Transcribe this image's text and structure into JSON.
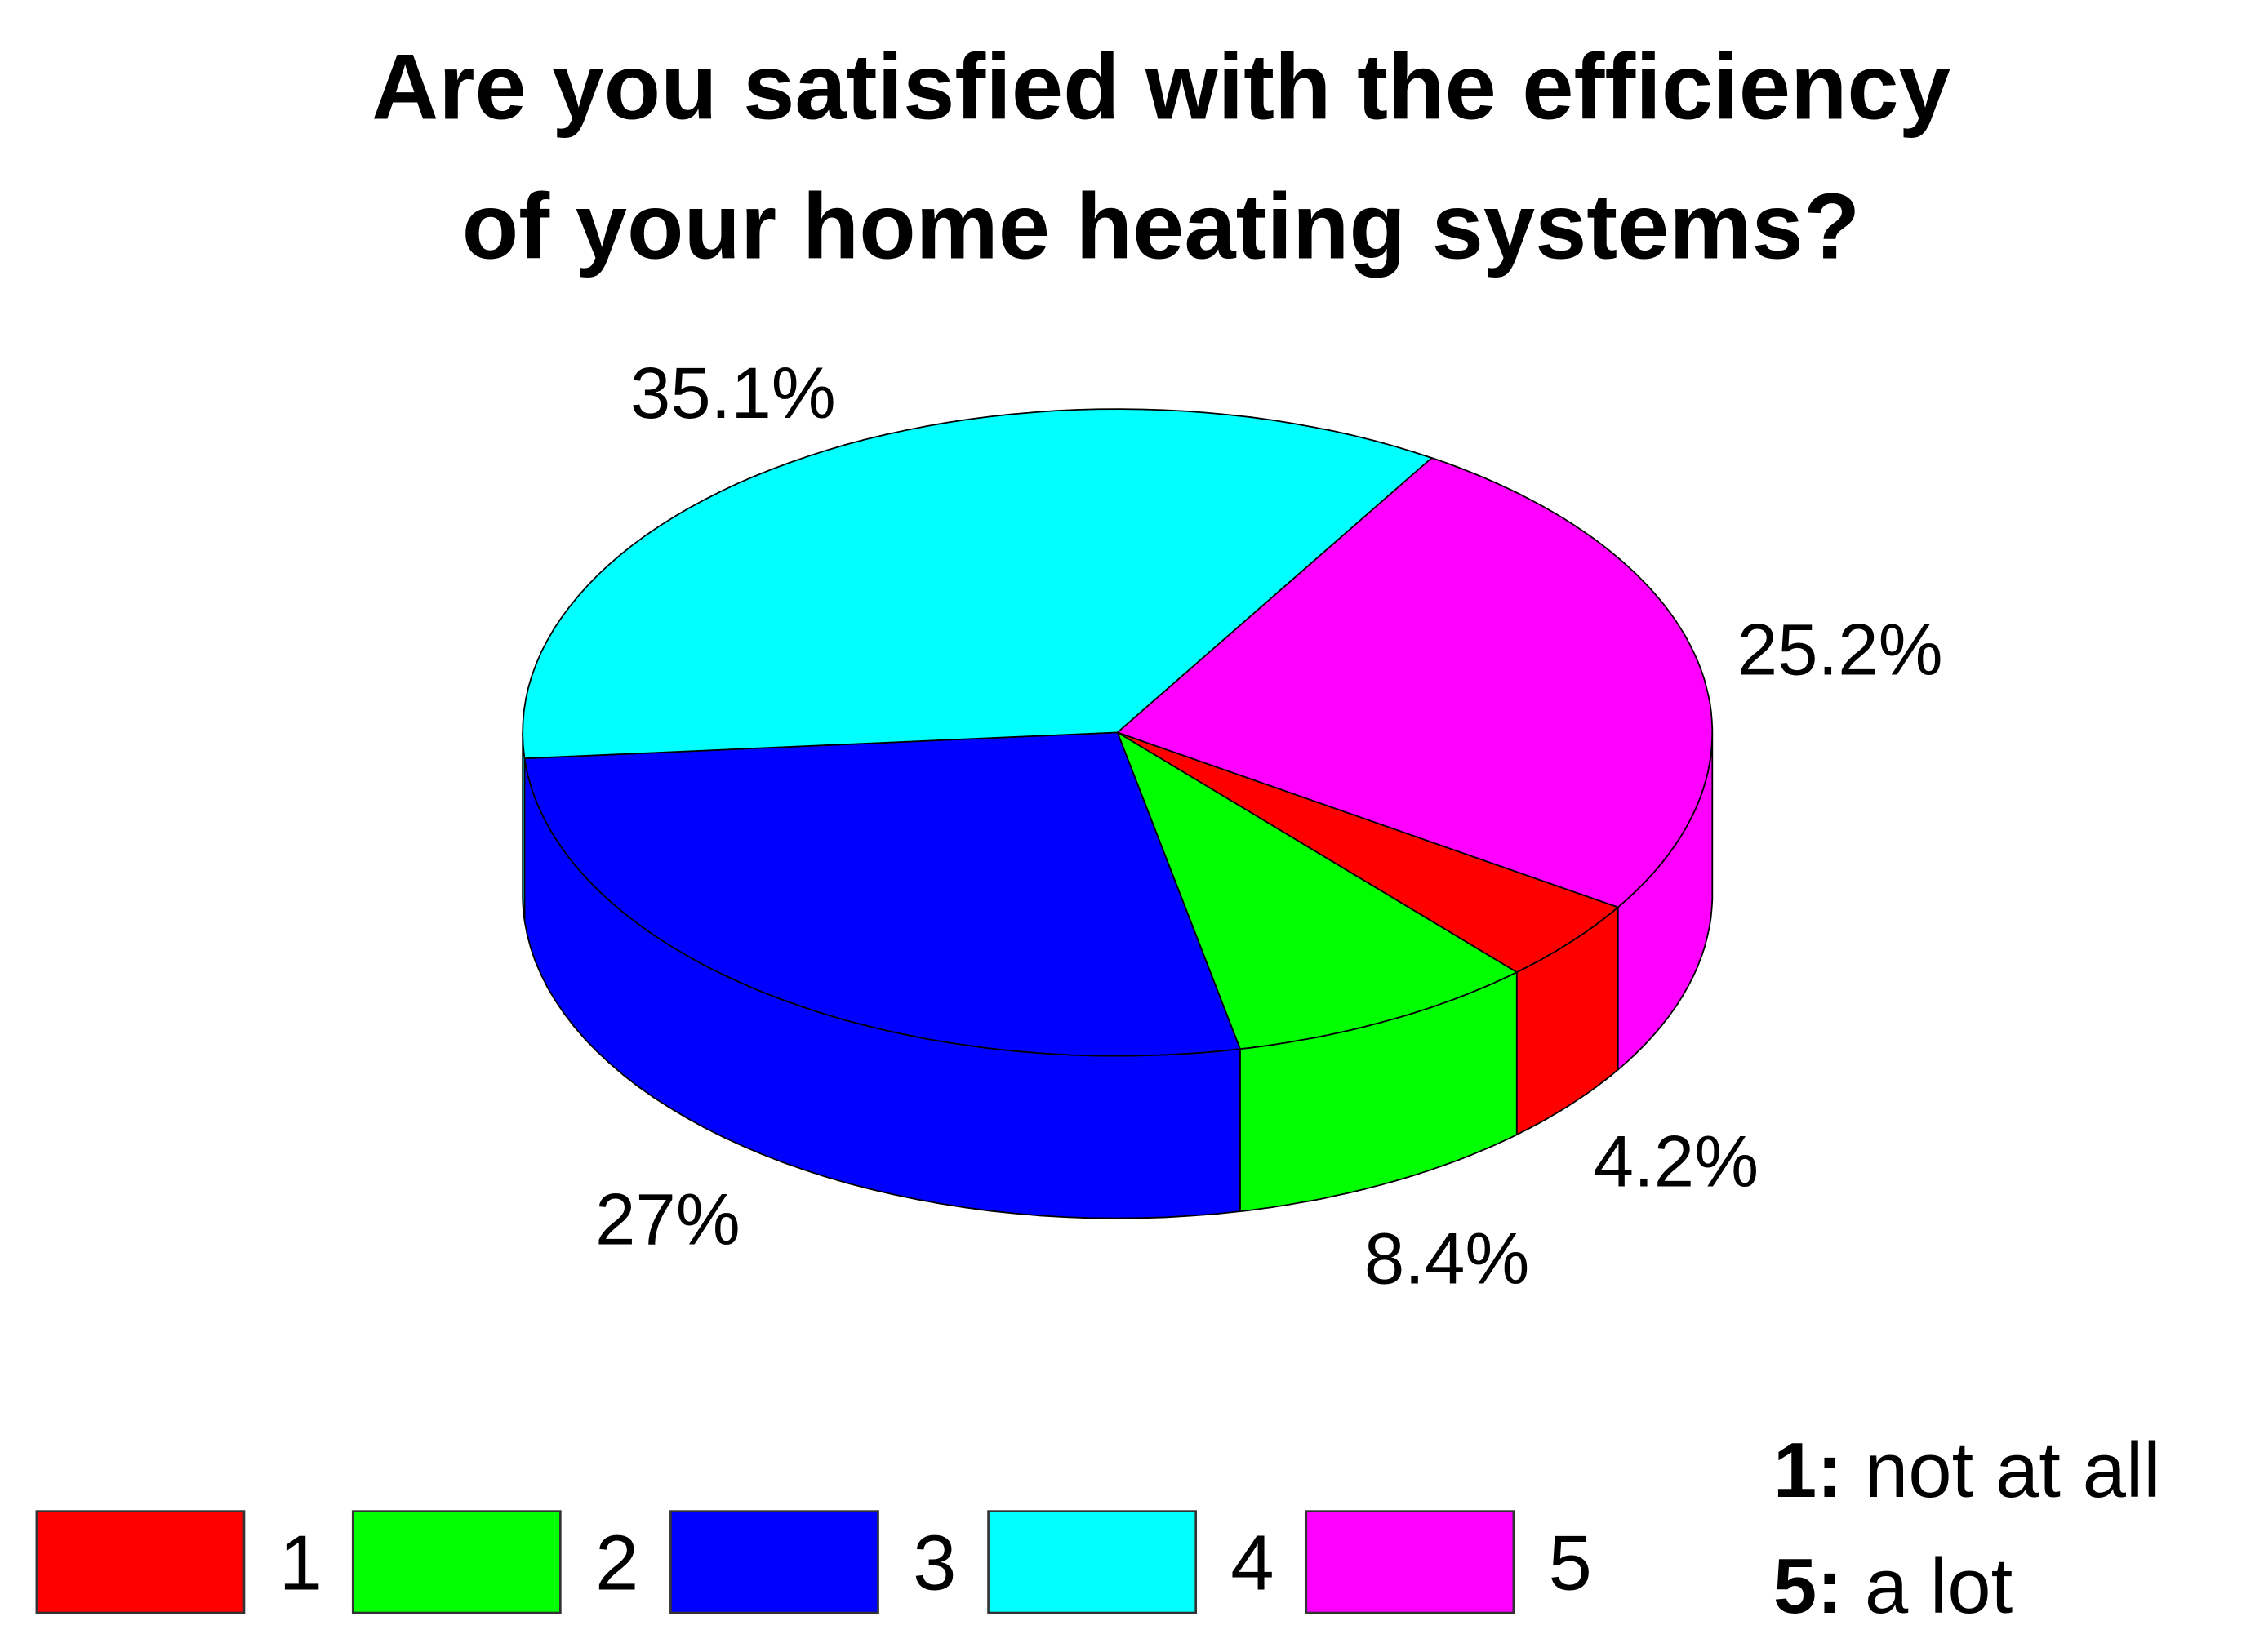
{
  "chart_data": {
    "type": "pie",
    "title": [
      "Are you satisfied with the efficiency",
      "of your home heating systems?"
    ],
    "categories": [
      "1",
      "2",
      "3",
      "4",
      "5"
    ],
    "values": [
      4.2,
      8.4,
      27,
      35.1,
      25.2
    ],
    "data_labels": [
      "4.2%",
      "8.4%",
      "27%",
      "35.1%",
      "25.2%"
    ],
    "colors": [
      "#ff0000",
      "#00ff00",
      "#0000ff",
      "#00ffff",
      "#ff00ff"
    ],
    "style": "3d",
    "legend": {
      "placement": "bottom",
      "entries": [
        "1",
        "2",
        "3",
        "4",
        "5"
      ]
    },
    "notes": [
      {
        "key": "1:",
        "text": " not at all"
      },
      {
        "key": "5:",
        "text": " a lot"
      }
    ]
  }
}
